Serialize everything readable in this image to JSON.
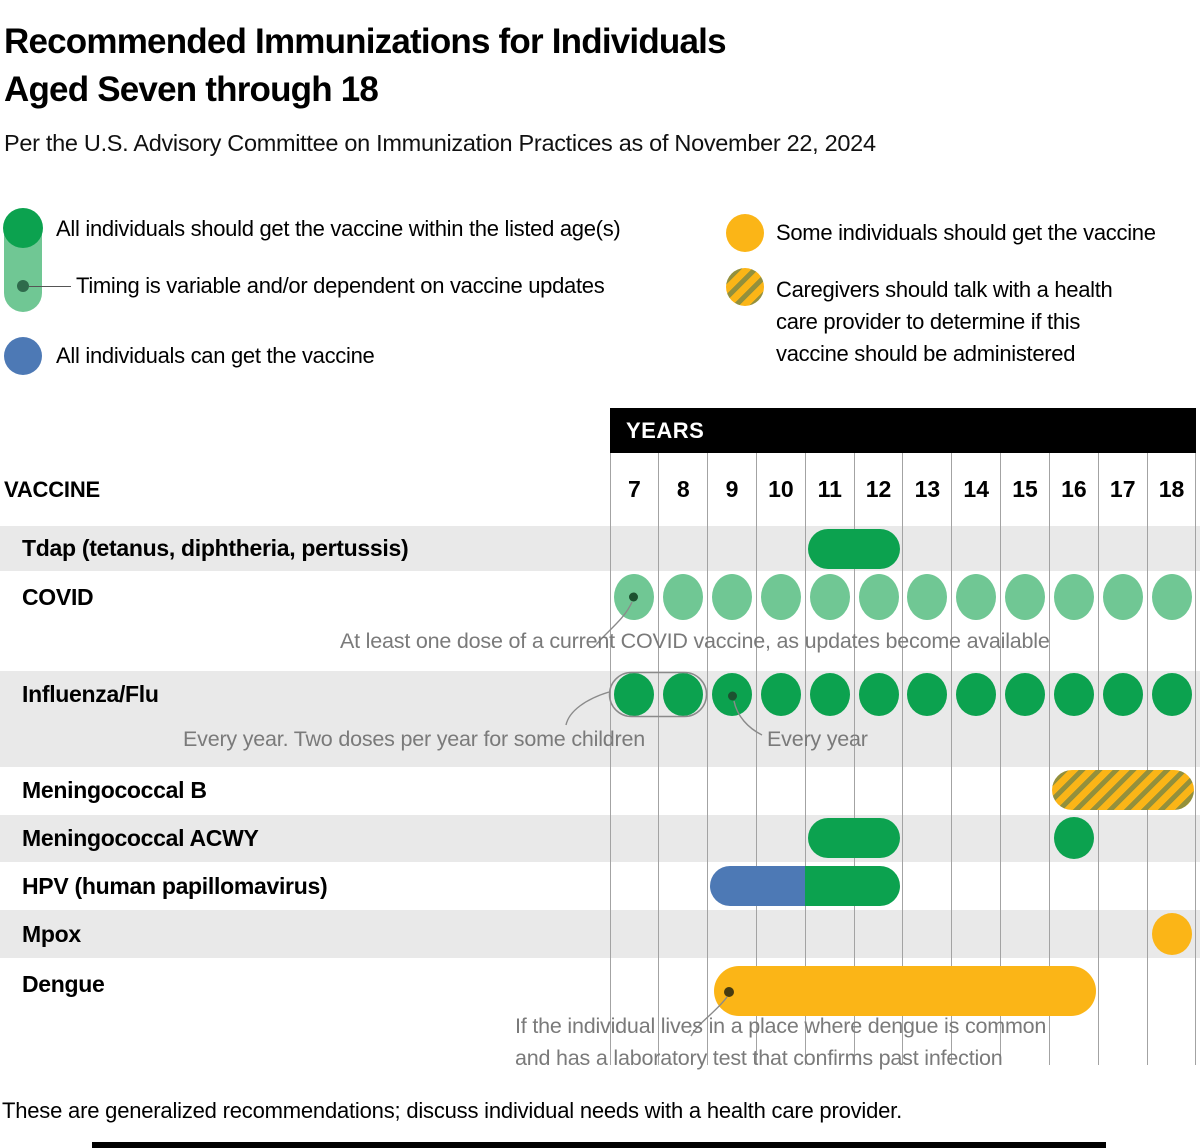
{
  "title_line1": "Recommended Immunizations for Individuals",
  "title_line2": "Aged Seven through 18",
  "subtitle": "Per the U.S. Advisory Committee on Immunization Practices as of November 22, 2024",
  "legend": {
    "should": "All individuals should get the vaccine within the listed age(s)",
    "variable": "Timing is variable and/or dependent on vaccine updates",
    "can": "All individuals can get the vaccine",
    "some": "Some individuals should get the vaccine",
    "caregiver": "Caregivers should talk with a health care provider to determine if this vaccine should be administered"
  },
  "header": {
    "years": "YEARS",
    "vaccine": "VACCINE"
  },
  "footer": "These are generalized recommendations; discuss individual needs with a health care provider.",
  "colors": {
    "green": "#0ca24f",
    "light_green": "#70c794",
    "blue": "#4d79b5",
    "yellow": "#fbb517",
    "hatch_olive": "#93903c",
    "row_gray": "#e9e9e9",
    "gridline": "#a3a3a3",
    "note_gray": "#7a7a7a",
    "leader_gray": "#8a8a8a",
    "dot_dark_green": "#1d5130",
    "dot_dark_brown": "#473b10"
  },
  "chart_data": {
    "type": "timeline",
    "title": "Recommended Immunizations for Individuals Aged Seven through 18",
    "x_axis": {
      "label": "YEARS",
      "ages": [
        7,
        8,
        9,
        10,
        11,
        12,
        13,
        14,
        15,
        16,
        17,
        18
      ]
    },
    "style_meanings": {
      "should": "All individuals should get the vaccine within the listed age(s)",
      "variable": "Timing is variable and/or dependent on vaccine updates",
      "can": "All individuals can get the vaccine",
      "some": "Some individuals should get the vaccine",
      "caregiver": "Caregivers should talk with a health care provider to determine if this vaccine should be administered"
    },
    "rows": [
      {
        "vaccine": "Tdap (tetanus, diphtheria, pertussis)",
        "marks": [
          {
            "shape": "pill",
            "style": "should",
            "from": 11,
            "to": 12
          }
        ]
      },
      {
        "vaccine": "COVID",
        "marks": [
          {
            "shape": "dots",
            "style": "variable",
            "from": 7,
            "to": 18,
            "leader_dot_age": 7
          }
        ],
        "note": "At least one dose of a current COVID vaccine, as updates become available"
      },
      {
        "vaccine": "Influenza/Flu",
        "marks": [
          {
            "shape": "dots",
            "style": "should",
            "from": 7,
            "to": 18,
            "leader_dot_age": 9
          }
        ],
        "outline_ages": [
          7,
          8
        ],
        "note": "Every year. Two doses per year for some children",
        "note2": "Every year"
      },
      {
        "vaccine": "Meningococcal B",
        "marks": [
          {
            "shape": "pill",
            "style": "caregiver",
            "from": 16,
            "to": 18
          }
        ]
      },
      {
        "vaccine": "Meningococcal ACWY",
        "marks": [
          {
            "shape": "pill",
            "style": "should",
            "from": 11,
            "to": 12
          },
          {
            "shape": "dot",
            "style": "should",
            "at": 16
          }
        ]
      },
      {
        "vaccine": "HPV (human papillomavirus)",
        "marks": [
          {
            "shape": "pill",
            "style": "can",
            "from": 9,
            "to": 10,
            "join": "right"
          },
          {
            "shape": "pill",
            "style": "should",
            "from": 11,
            "to": 12,
            "join": "left"
          }
        ]
      },
      {
        "vaccine": "Mpox",
        "marks": [
          {
            "shape": "dot",
            "style": "some",
            "at": 18
          }
        ]
      },
      {
        "vaccine": "Dengue",
        "marks": [
          {
            "shape": "pill",
            "style": "some",
            "from": 9,
            "to": 16,
            "thick": true,
            "leader_dot": true
          }
        ],
        "note_lines": [
          "If the individual lives in a place where dengue is common",
          "and has a laboratory test that confirms past infection"
        ]
      }
    ]
  }
}
